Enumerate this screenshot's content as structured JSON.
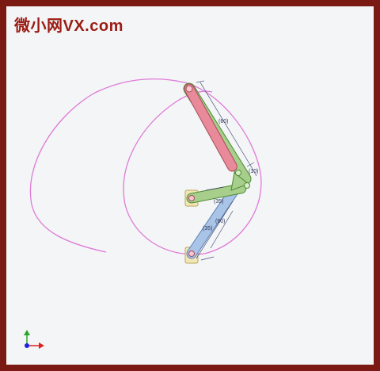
{
  "watermark": {
    "text": "微小网VX.com"
  },
  "dimensions": {
    "top_link_length": "(60)",
    "coupler_offset": "(10)",
    "short_link_length": "(35)",
    "lower_link_length": "(60)",
    "lower_offset": "(35)"
  },
  "colors": {
    "frame": "#7a1a12",
    "canvas": "#f3f5f6",
    "trace_curve": "#e07ad8",
    "link_red": "#e98a9a",
    "link_green": "#a7cf8b",
    "link_blue": "#a9c4e6",
    "pivot_fill": "#f2e7b4",
    "axis_y": "#2aa52a",
    "axis_x": "#e02020",
    "axis_z": "#2020e0"
  },
  "icons": {
    "triad": "xyz-triad-icon"
  }
}
